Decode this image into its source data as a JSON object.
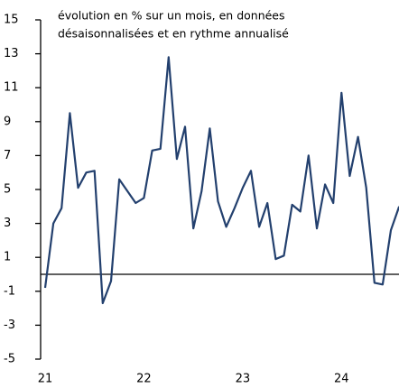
{
  "chart_data": {
    "type": "line",
    "annotations": [
      "évolution en % sur un mois, en données",
      "désaisonnalisées et en rythme annualisé"
    ],
    "categories": [
      "21",
      null,
      null,
      null,
      null,
      null,
      null,
      null,
      null,
      null,
      null,
      null,
      "22",
      null,
      null,
      null,
      null,
      null,
      null,
      null,
      null,
      null,
      null,
      null,
      "23",
      null,
      null,
      null,
      null,
      null,
      null,
      null,
      null,
      null,
      null,
      null,
      "24",
      null,
      null,
      null,
      null,
      null,
      null,
      null
    ],
    "series": [
      {
        "color": "#23406e",
        "values": [
          -0.8,
          3.0,
          3.9,
          9.5,
          5.1,
          6.0,
          6.1,
          -1.7,
          -0.4,
          5.6,
          4.9,
          4.2,
          4.5,
          7.3,
          7.4,
          12.8,
          6.8,
          8.7,
          2.7,
          4.9,
          8.6,
          4.3,
          2.8,
          3.9,
          5.1,
          6.1,
          2.8,
          4.2,
          0.9,
          1.1,
          4.1,
          3.7,
          7.0,
          2.7,
          5.3,
          4.2,
          10.7,
          5.8,
          8.1,
          5.1,
          -0.5,
          -0.6,
          2.6,
          4.0
        ]
      }
    ],
    "ylim": [
      -5,
      15
    ],
    "yticks": [
      -5,
      -3,
      -1,
      1,
      3,
      5,
      7,
      9,
      11,
      13,
      15
    ],
    "zero_line": true
  }
}
